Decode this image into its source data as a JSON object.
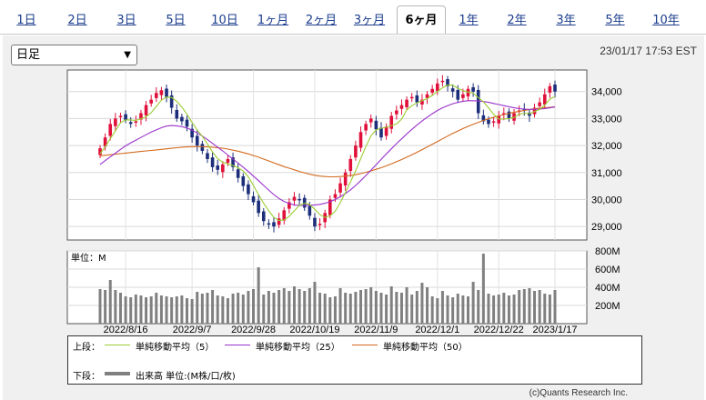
{
  "tabs": [
    "1日",
    "2日",
    "3日",
    "5日",
    "10日",
    "1ヶ月",
    "2ヶ月",
    "3ヶ月",
    "6ヶ月",
    "1年",
    "2年",
    "3年",
    "5年",
    "10年"
  ],
  "active_tab": "6ヶ月",
  "period_select": {
    "value": "日足"
  },
  "timestamp": "23/01/17 17:53 EST",
  "colors": {
    "up": "#e0103a",
    "down": "#1c2e7a",
    "ma5": "#9acd32",
    "ma25": "#9932cc",
    "ma50": "#d2691e",
    "volume": "#808080"
  },
  "legend": {
    "upper_label": "上段：",
    "lower_label": "下段：",
    "ma5": "単純移動平均（5）",
    "ma25": "単純移動平均（25）",
    "ma50": "単純移動平均（50）",
    "volume": "出来高 単位:(M株/口/枚)"
  },
  "credit": "(c)Quants Research Inc.",
  "chart_data": [
    {
      "type": "candlestick",
      "title": "",
      "y_ticks": [
        29000,
        30000,
        31000,
        32000,
        33000,
        34000
      ],
      "y_tick_labels": [
        "29,000",
        "30,000",
        "31,000",
        "32,000",
        "33,000",
        "34,000"
      ],
      "ylim": [
        28500,
        34800
      ],
      "x_tick_labels": [
        "2022/8/16",
        "2022/9/7",
        "2022/9/28",
        "2022/10/19",
        "2022/11/9",
        "2022/12/1",
        "2022/12/22",
        "2023/1/17"
      ],
      "series_close": [
        31900,
        32300,
        32800,
        33000,
        33100,
        32950,
        32800,
        32900,
        33200,
        33500,
        33700,
        33950,
        34050,
        33800,
        33400,
        33000,
        32900,
        32700,
        32300,
        32000,
        31800,
        31500,
        31200,
        31100,
        31300,
        31500,
        31200,
        30800,
        30500,
        30200,
        29900,
        29500,
        29200,
        29100,
        29000,
        29300,
        29600,
        29900,
        30100,
        30000,
        29700,
        29400,
        29000,
        29100,
        29500,
        30000,
        30200,
        30600,
        31000,
        31500,
        32000,
        32500,
        32800,
        33000,
        32600,
        32300,
        32700,
        33100,
        33300,
        33500,
        33700,
        33800,
        33600,
        33700,
        33900,
        34100,
        34300,
        34400,
        34200,
        34000,
        33700,
        33900,
        34100,
        34000,
        33200,
        32900,
        32800,
        32900,
        33100,
        33200,
        33000,
        33200,
        33300,
        33300,
        33100,
        33400,
        33600,
        33900,
        34200,
        34000
      ],
      "ma5": [
        31700,
        31950,
        32250,
        32550,
        32850,
        32950,
        32950,
        32930,
        32990,
        33070,
        33220,
        33450,
        33680,
        33800,
        33780,
        33640,
        33430,
        33160,
        32860,
        32580,
        32340,
        32060,
        31760,
        31520,
        31380,
        31320,
        31260,
        31180,
        31060,
        30840,
        30520,
        30180,
        29860,
        29580,
        29340,
        29220,
        29240,
        29380,
        29580,
        29780,
        29860,
        29820,
        29640,
        29440,
        29340,
        29400,
        29560,
        29880,
        30260,
        30660,
        31060,
        31520,
        31960,
        32360,
        32580,
        32640,
        32680,
        32740,
        32800,
        32980,
        33320,
        33480,
        33580,
        33660,
        33740,
        33860,
        34000,
        34140,
        34240,
        34240,
        34120,
        34040,
        33980,
        33940,
        33780,
        33620,
        33400,
        33160,
        32980,
        32980,
        33000,
        33040,
        33160,
        33200,
        33180,
        33260,
        33340,
        33500,
        33720,
        33820
      ],
      "ma25": [
        31300,
        31440,
        31580,
        31720,
        31860,
        31990,
        32100,
        32200,
        32300,
        32400,
        32500,
        32580,
        32660,
        32720,
        32740,
        32730,
        32700,
        32650,
        32570,
        32470,
        32350,
        32220,
        32080,
        31940,
        31800,
        31650,
        31500,
        31350,
        31200,
        31040,
        30870,
        30700,
        30520,
        30350,
        30180,
        30040,
        29930,
        29850,
        29800,
        29780,
        29780,
        29790,
        29800,
        29820,
        29860,
        29920,
        30000,
        30100,
        30220,
        30360,
        30520,
        30700,
        30890,
        31090,
        31290,
        31490,
        31690,
        31880,
        32070,
        32250,
        32430,
        32600,
        32760,
        32910,
        33050,
        33180,
        33300,
        33400,
        33480,
        33550,
        33600,
        33640,
        33660,
        33660,
        33650,
        33630,
        33600,
        33560,
        33520,
        33480,
        33440,
        33400,
        33370,
        33350,
        33340,
        33340,
        33350,
        33370,
        33400,
        33430
      ],
      "ma50": [
        31620,
        31640,
        31660,
        31680,
        31700,
        31720,
        31740,
        31760,
        31780,
        31800,
        31820,
        31840,
        31860,
        31880,
        31900,
        31920,
        31940,
        31950,
        31960,
        31960,
        31960,
        31950,
        31940,
        31920,
        31900,
        31870,
        31830,
        31790,
        31740,
        31690,
        31630,
        31570,
        31500,
        31430,
        31360,
        31290,
        31220,
        31160,
        31100,
        31040,
        30990,
        30940,
        30900,
        30870,
        30850,
        30840,
        30840,
        30850,
        30870,
        30890,
        30920,
        30960,
        31010,
        31060,
        31120,
        31180,
        31250,
        31320,
        31400,
        31480,
        31570,
        31660,
        31750,
        31850,
        31950,
        32050,
        32150,
        32250,
        32350,
        32450,
        32540,
        32630,
        32710,
        32790,
        32860,
        32930,
        32990,
        33050,
        33100,
        33150,
        33190,
        33230,
        33270,
        33300,
        33330,
        33360,
        33380,
        33400,
        33420,
        33440
      ]
    },
    {
      "type": "bar",
      "title": "",
      "ylabel": "単位：M",
      "y_ticks": [
        200,
        400,
        600,
        800
      ],
      "y_tick_labels": [
        "200M",
        "400M",
        "600M",
        "800M"
      ],
      "ylim": [
        0,
        800
      ],
      "values": [
        380,
        370,
        480,
        370,
        340,
        300,
        290,
        320,
        310,
        290,
        300,
        340,
        310,
        300,
        290,
        300,
        310,
        280,
        270,
        350,
        330,
        340,
        370,
        310,
        300,
        280,
        330,
        340,
        320,
        360,
        380,
        620,
        320,
        360,
        340,
        370,
        390,
        360,
        410,
        380,
        360,
        390,
        460,
        340,
        330,
        290,
        300,
        390,
        340,
        330,
        350,
        370,
        380,
        400,
        360,
        340,
        320,
        410,
        350,
        340,
        400,
        320,
        360,
        450,
        400,
        300,
        280,
        360,
        310,
        290,
        330,
        310,
        300,
        460,
        370,
        770,
        330,
        310,
        320,
        340,
        310,
        320,
        370,
        380,
        390,
        360,
        370,
        330,
        320,
        370
      ]
    }
  ]
}
